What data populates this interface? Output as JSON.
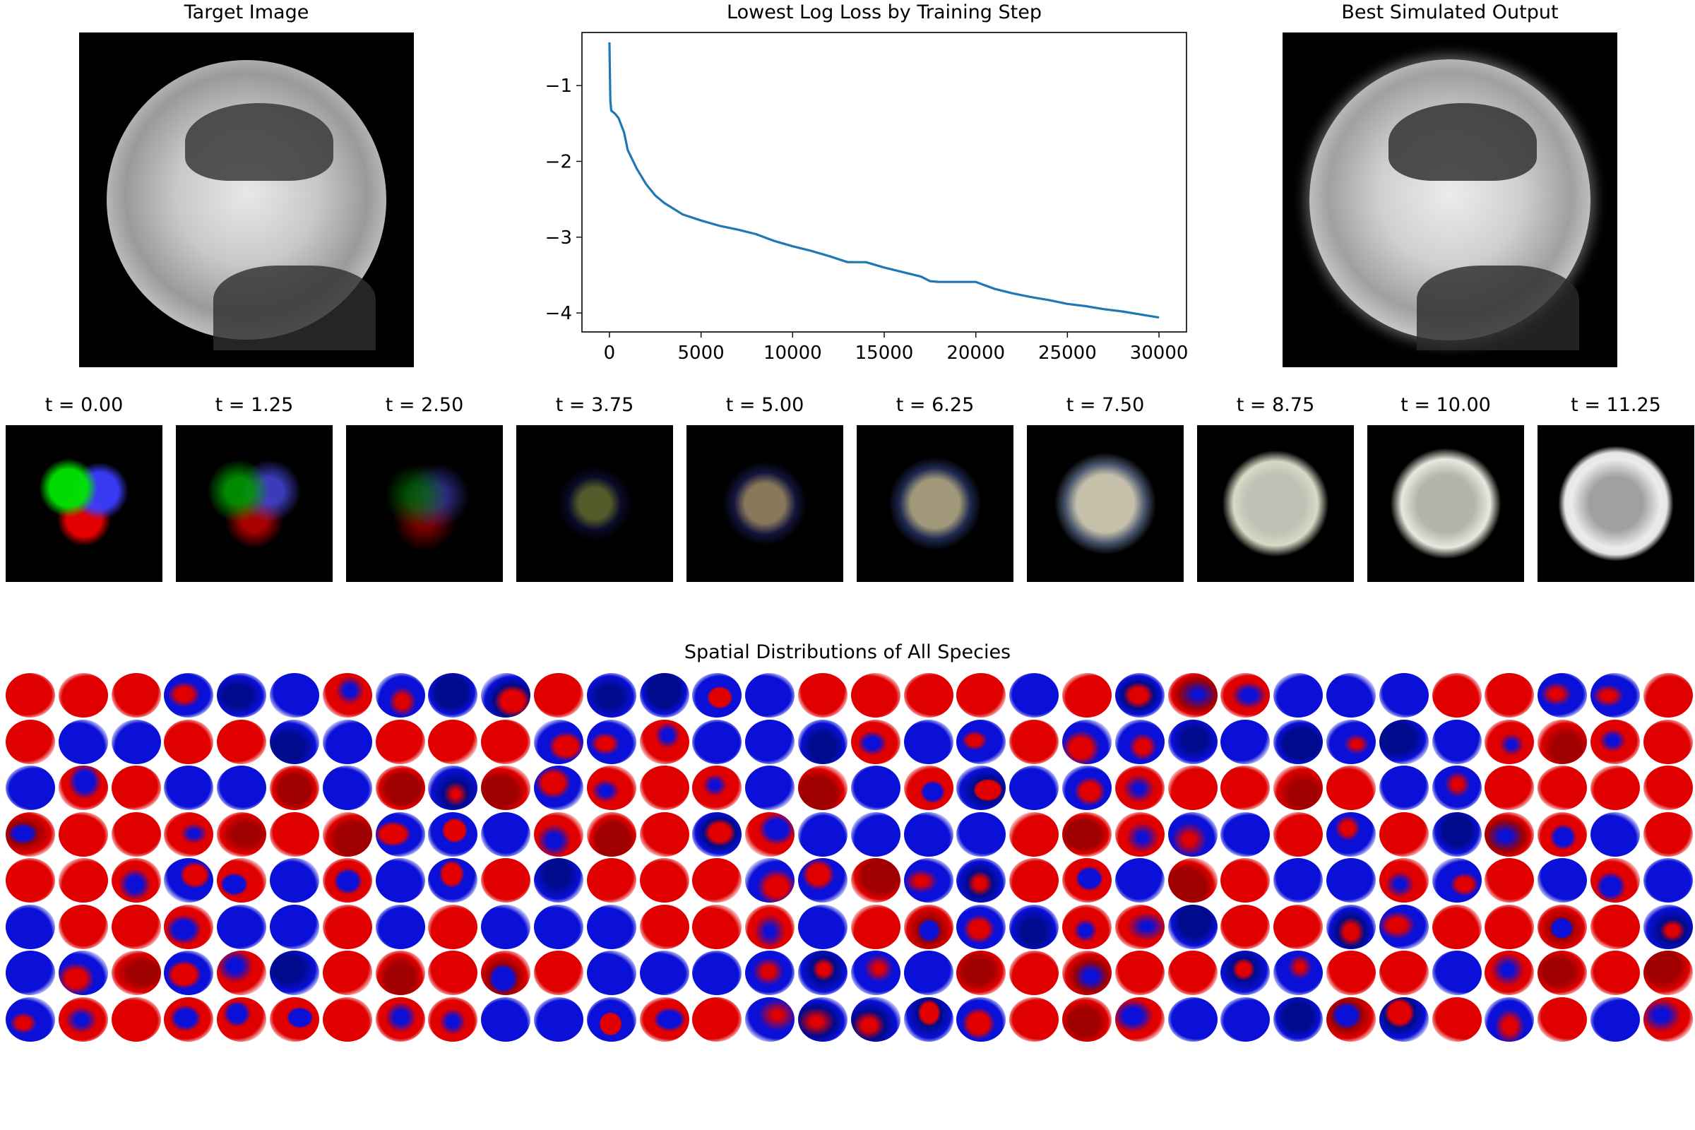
{
  "left_panel": {
    "title": "Target Image"
  },
  "right_panel": {
    "title": "Best Simulated Output"
  },
  "chart_data": {
    "type": "line",
    "title": "Lowest Log Loss by Training Step",
    "xlabel": "",
    "ylabel": "",
    "xlim": [
      -1500,
      31500
    ],
    "ylim": [
      -4.25,
      -0.3
    ],
    "xticks": [
      0,
      5000,
      10000,
      15000,
      20000,
      25000,
      30000
    ],
    "xtick_labels": [
      "0",
      "5000",
      "10000",
      "15000",
      "20000",
      "25000",
      "30000"
    ],
    "yticks": [
      -1,
      -2,
      -3,
      -4
    ],
    "ytick_labels": [
      "−1",
      "−2",
      "−3",
      "−4"
    ],
    "grid": false,
    "series": [
      {
        "color": "#1f77b4",
        "x": [
          0,
          50,
          100,
          300,
          500,
          800,
          1000,
          1500,
          2000,
          2500,
          3000,
          4000,
          5000,
          6000,
          7000,
          8000,
          9000,
          10000,
          11000,
          12000,
          13000,
          14000,
          15000,
          16000,
          17000,
          17500,
          18000,
          19000,
          20000,
          21000,
          22000,
          23000,
          24000,
          25000,
          26000,
          27000,
          28000,
          29000,
          30000
        ],
        "y": [
          -0.43,
          -1.2,
          -1.33,
          -1.37,
          -1.43,
          -1.62,
          -1.85,
          -2.1,
          -2.3,
          -2.45,
          -2.55,
          -2.7,
          -2.78,
          -2.85,
          -2.9,
          -2.96,
          -3.05,
          -3.12,
          -3.18,
          -3.25,
          -3.33,
          -3.33,
          -3.4,
          -3.46,
          -3.52,
          -3.58,
          -3.59,
          -3.59,
          -3.59,
          -3.68,
          -3.74,
          -3.79,
          -3.83,
          -3.88,
          -3.91,
          -3.95,
          -3.98,
          -4.02,
          -4.06
        ]
      }
    ]
  },
  "snapshots": [
    {
      "label": "t = 0.00"
    },
    {
      "label": "t = 1.25"
    },
    {
      "label": "t = 2.50"
    },
    {
      "label": "t = 3.75"
    },
    {
      "label": "t = 5.00"
    },
    {
      "label": "t = 6.25"
    },
    {
      "label": "t = 7.50"
    },
    {
      "label": "t = 8.75"
    },
    {
      "label": "t = 10.00"
    },
    {
      "label": "t = 11.25"
    }
  ],
  "species": {
    "title": "Spatial Distributions of All Species",
    "colors": {
      "positive": "#e00000",
      "negative": "#0a10d8",
      "neutral": "#ffffff"
    }
  }
}
